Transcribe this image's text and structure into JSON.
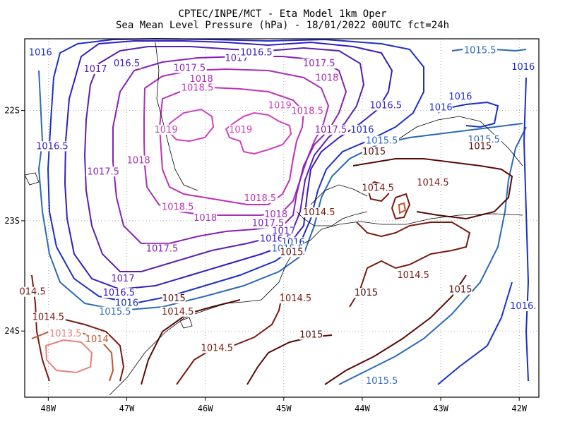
{
  "title": {
    "line1": "CPTEC/INPE/MCT -  Eta Model 1km Oper",
    "line2": "Sea Mean Level Pressure (hPa) - 18/01/2022 00UTC fct=24h"
  },
  "axes": {
    "lon_ticks": [
      "48W",
      "47W",
      "46W",
      "45W",
      "44W",
      "43W",
      "42W"
    ],
    "lon_values": [
      -48,
      -47,
      -46,
      -45,
      -44,
      -43,
      -42
    ],
    "lat_ticks": [
      "22S",
      "23S",
      "24S"
    ],
    "lat_values": [
      -22,
      -23,
      -24
    ],
    "lon_range": [
      -48.3,
      -41.75
    ],
    "lat_range": [
      -24.6,
      -21.35
    ],
    "grid": "dotted"
  },
  "colors": {
    "1013.5": "#e8807a",
    "1014": "#c05530",
    "1014.5": "#7a1a10",
    "1015": "#5a0a05",
    "1015.5": "#2a6ab8",
    "1016": "#1a30c8",
    "1016.5": "#3a1ac0",
    "1017": "#5a20b0",
    "1017.5": "#8a20b8",
    "1018": "#a830b8",
    "1018.5": "#c030b8",
    "1019": "#d040c0",
    "coast": "#000000"
  },
  "chart_data": {
    "type": "contour",
    "field": "Sea Mean Level Pressure (hPa)",
    "labels": [
      {
        "text": "1016",
        "lon": -48.1,
        "lat": -21.5,
        "level": "1016"
      },
      {
        "text": "1017",
        "lon": -47.4,
        "lat": -21.65,
        "level": "1017"
      },
      {
        "text": "016.5",
        "lon": -47.0,
        "lat": -21.6,
        "level": "1016.5"
      },
      {
        "text": "1017.5",
        "lon": -46.2,
        "lat": -21.64,
        "level": "1017.5"
      },
      {
        "text": "1018",
        "lon": -46.05,
        "lat": -21.74,
        "level": "1018"
      },
      {
        "text": "1018.5",
        "lon": -46.1,
        "lat": -21.82,
        "level": "1018.5"
      },
      {
        "text": "1017",
        "lon": -45.6,
        "lat": -21.55,
        "level": "1017"
      },
      {
        "text": "1016.5",
        "lon": -45.35,
        "lat": -21.5,
        "level": "1016.5"
      },
      {
        "text": "1017.5",
        "lon": -44.55,
        "lat": -21.6,
        "level": "1017.5"
      },
      {
        "text": "1018",
        "lon": -44.45,
        "lat": -21.73,
        "level": "1018"
      },
      {
        "text": "1019",
        "lon": -45.05,
        "lat": -21.98,
        "level": "1019"
      },
      {
        "text": "1018.5",
        "lon": -44.7,
        "lat": -22.03,
        "level": "1018.5"
      },
      {
        "text": "1019",
        "lon": -46.5,
        "lat": -22.2,
        "level": "1019"
      },
      {
        "text": "1019",
        "lon": -45.55,
        "lat": -22.2,
        "level": "1019"
      },
      {
        "text": "1017.5",
        "lon": -44.4,
        "lat": -22.2,
        "level": "1017.5"
      },
      {
        "text": "1016.5",
        "lon": -43.7,
        "lat": -21.98,
        "level": "1016.5"
      },
      {
        "text": "1016",
        "lon": -43.0,
        "lat": -22.0,
        "level": "1016"
      },
      {
        "text": "1016",
        "lon": -42.75,
        "lat": -21.9,
        "level": "1016"
      },
      {
        "text": "1016",
        "lon": -41.95,
        "lat": -21.63,
        "level": "1016"
      },
      {
        "text": "1015.5",
        "lon": -42.5,
        "lat": -21.48,
        "level": "1015.5"
      },
      {
        "text": "1016",
        "lon": -44.0,
        "lat": -22.2,
        "level": "1016"
      },
      {
        "text": "1015.5",
        "lon": -43.75,
        "lat": -22.3,
        "level": "1015.5"
      },
      {
        "text": "1015",
        "lon": -43.85,
        "lat": -22.4,
        "level": "1015"
      },
      {
        "text": "1015.5",
        "lon": -42.45,
        "lat": -22.29,
        "level": "1015.5"
      },
      {
        "text": "1015",
        "lon": -42.5,
        "lat": -22.35,
        "level": "1015"
      },
      {
        "text": "1016.5",
        "lon": -47.95,
        "lat": -22.35,
        "level": "1016.5"
      },
      {
        "text": "1017.5",
        "lon": -47.3,
        "lat": -22.58,
        "level": "1017.5"
      },
      {
        "text": "1018",
        "lon": -46.85,
        "lat": -22.48,
        "level": "1018"
      },
      {
        "text": "1018.5",
        "lon": -46.35,
        "lat": -22.9,
        "level": "1018.5"
      },
      {
        "text": "1018.5",
        "lon": -45.3,
        "lat": -22.82,
        "level": "1018.5"
      },
      {
        "text": "1018",
        "lon": -46.0,
        "lat": -23.0,
        "level": "1018"
      },
      {
        "text": "1018",
        "lon": -45.1,
        "lat": -22.97,
        "level": "1018"
      },
      {
        "text": "1014.5",
        "lon": -44.55,
        "lat": -22.95,
        "level": "1014.5"
      },
      {
        "text": "1017.5",
        "lon": -45.2,
        "lat": -23.05,
        "level": "1017.5"
      },
      {
        "text": "1017",
        "lon": -45.0,
        "lat": -23.12,
        "level": "1017"
      },
      {
        "text": "1016.5",
        "lon": -45.1,
        "lat": -23.19,
        "level": "1016.5"
      },
      {
        "text": "1016",
        "lon": -44.88,
        "lat": -23.22,
        "level": "1016"
      },
      {
        "text": "1015.5",
        "lon": -44.95,
        "lat": -23.28,
        "level": "1015.5"
      },
      {
        "text": "1015",
        "lon": -44.9,
        "lat": -23.31,
        "level": "1015"
      },
      {
        "text": "1014.5",
        "lon": -43.8,
        "lat": -22.73,
        "level": "1014.5"
      },
      {
        "text": "1014.5",
        "lon": -43.1,
        "lat": -22.68,
        "level": "1014.5"
      },
      {
        "text": "1017.5",
        "lon": -46.55,
        "lat": -23.28,
        "level": "1017.5"
      },
      {
        "text": "1017",
        "lon": -47.05,
        "lat": -23.55,
        "level": "1017"
      },
      {
        "text": "1016.5",
        "lon": -47.1,
        "lat": -23.68,
        "level": "1016.5"
      },
      {
        "text": "1016",
        "lon": -47.0,
        "lat": -23.77,
        "level": "1016"
      },
      {
        "text": "1015.5",
        "lon": -47.15,
        "lat": -23.85,
        "level": "1015.5"
      },
      {
        "text": "1015",
        "lon": -46.4,
        "lat": -23.73,
        "level": "1015"
      },
      {
        "text": "1014.5",
        "lon": -46.35,
        "lat": -23.85,
        "level": "1014.5"
      },
      {
        "text": "1014.5",
        "lon": -44.85,
        "lat": -23.73,
        "level": "1014.5"
      },
      {
        "text": "1015",
        "lon": -43.95,
        "lat": -23.68,
        "level": "1015"
      },
      {
        "text": "1014.5",
        "lon": -43.35,
        "lat": -23.52,
        "level": "1014.5"
      },
      {
        "text": "1015",
        "lon": -42.75,
        "lat": -23.65,
        "level": "1015"
      },
      {
        "text": "1016.",
        "lon": -41.95,
        "lat": -23.8,
        "level": "1016"
      },
      {
        "text": "014.5",
        "lon": -48.2,
        "lat": -23.67,
        "level": "1014.5"
      },
      {
        "text": "1014.5",
        "lon": -48.0,
        "lat": -23.9,
        "level": "1014.5"
      },
      {
        "text": "1013.5",
        "lon": -47.78,
        "lat": -24.05,
        "level": "1013.5"
      },
      {
        "text": "1014",
        "lon": -47.38,
        "lat": -24.1,
        "level": "1014"
      },
      {
        "text": "1015",
        "lon": -44.65,
        "lat": -24.06,
        "level": "1015"
      },
      {
        "text": "1014.5",
        "lon": -45.85,
        "lat": -24.18,
        "level": "1014.5"
      },
      {
        "text": "1015.5",
        "lon": -43.75,
        "lat": -24.48,
        "level": "1015.5"
      }
    ]
  }
}
